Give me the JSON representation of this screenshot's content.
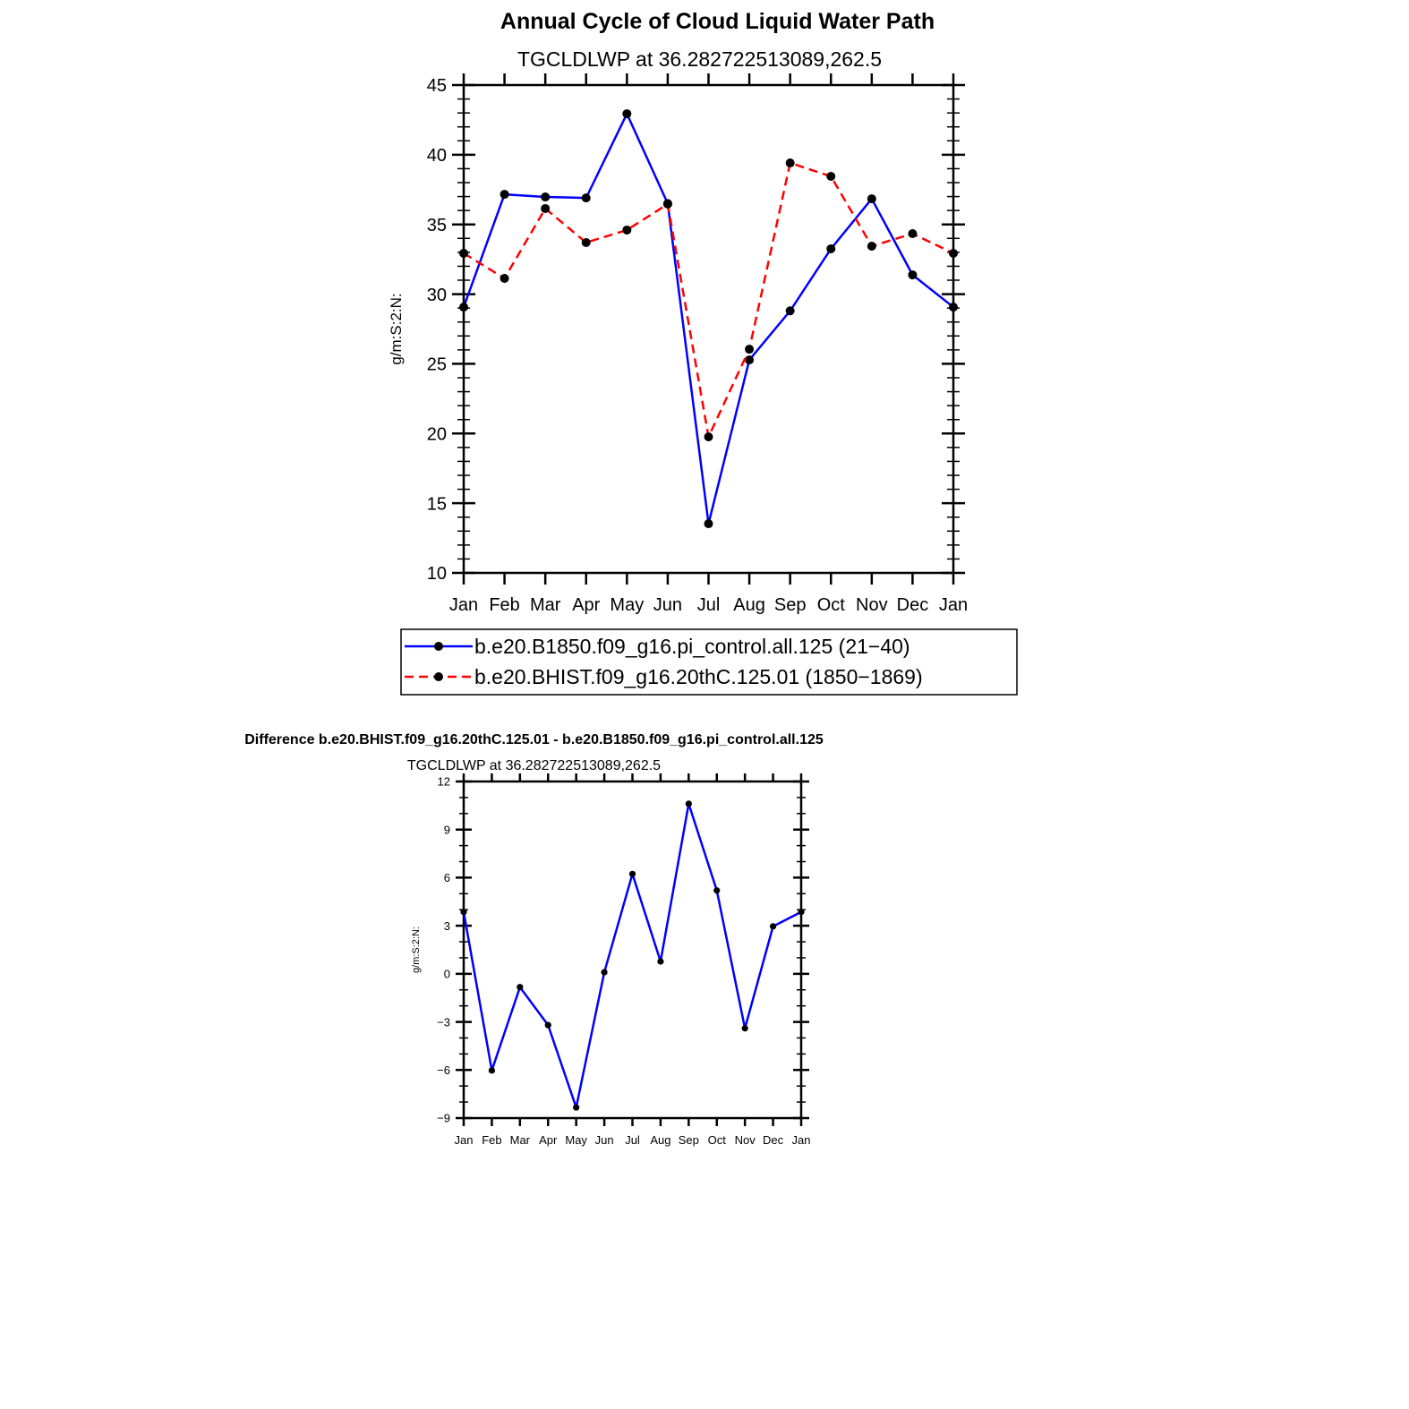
{
  "chart_data": [
    {
      "type": "line",
      "title": "Annual Cycle of Cloud Liquid Water Path",
      "subtitle": "TGCLDLWP  at  36.282722513089,262.5",
      "xlabel": "",
      "ylabel": "g/m:S:2:N:",
      "categories": [
        "Jan",
        "Feb",
        "Mar",
        "Apr",
        "May",
        "Jun",
        "Jul",
        "Aug",
        "Sep",
        "Oct",
        "Nov",
        "Dec",
        "Jan"
      ],
      "ylim": [
        10,
        45
      ],
      "yticks": [
        10,
        15,
        20,
        25,
        30,
        35,
        40,
        45
      ],
      "grid": false,
      "legend_placement": "bottom",
      "series": [
        {
          "name": "b.e20.B1850.f09_g16.pi_control.all.125 (21−40)",
          "color": "#0000ff",
          "dash": "solid",
          "values": [
            29.07,
            37.16,
            36.97,
            36.9,
            42.94,
            36.5,
            13.53,
            25.28,
            28.8,
            33.25,
            36.84,
            31.38,
            29.07
          ]
        },
        {
          "name": "b.e20.BHIST.f09_g16.20thC.125.01 (1850−1869)",
          "color": "#ff0000",
          "dash": "dashed",
          "values": [
            32.93,
            31.13,
            36.14,
            33.7,
            34.6,
            36.46,
            19.76,
            26.05,
            39.41,
            38.45,
            33.44,
            34.34,
            32.93
          ]
        }
      ]
    },
    {
      "type": "line",
      "title": "Difference b.e20.BHIST.f09_g16.20thC.125.01 - b.e20.B1850.f09_g16.pi_control.all.125",
      "subtitle": "TGCLDLWP  at  36.282722513089,262.5",
      "xlabel": "",
      "ylabel": "g/m:S:2:N:",
      "categories": [
        "Jan",
        "Feb",
        "Mar",
        "Apr",
        "May",
        "Jun",
        "Jul",
        "Aug",
        "Sep",
        "Oct",
        "Nov",
        "Dec",
        "Jan"
      ],
      "ylim": [
        -9,
        12
      ],
      "yticks": [
        -9,
        -6,
        -3,
        0,
        3,
        6,
        9,
        12
      ],
      "grid": false,
      "series": [
        {
          "name": "difference",
          "color": "#0000ff",
          "dash": "solid",
          "values": [
            3.86,
            -6.03,
            -0.83,
            -3.2,
            -8.34,
            0.1,
            6.23,
            0.77,
            10.61,
            5.2,
            -3.4,
            2.96,
            3.86
          ]
        }
      ]
    }
  ]
}
